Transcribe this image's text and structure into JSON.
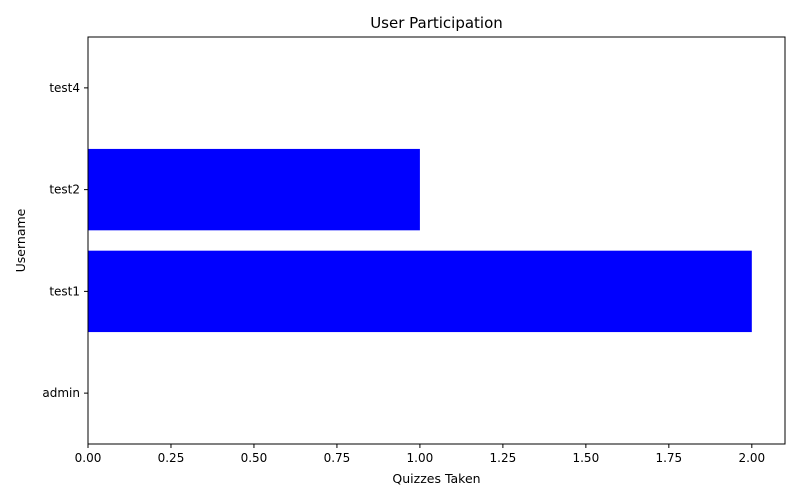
{
  "chart_data": {
    "type": "bar",
    "orientation": "horizontal",
    "title": "User Participation",
    "xlabel": "Quizzes Taken",
    "ylabel": "Username",
    "categories": [
      "admin",
      "test1",
      "test2",
      "test4"
    ],
    "values": [
      0,
      2,
      1,
      0
    ],
    "xlim": [
      0,
      2.1
    ],
    "xticks": [
      "0.00",
      "0.25",
      "0.50",
      "0.75",
      "1.00",
      "1.25",
      "1.50",
      "1.75",
      "2.00"
    ],
    "bar_color": "#0000ff",
    "grid": false
  }
}
